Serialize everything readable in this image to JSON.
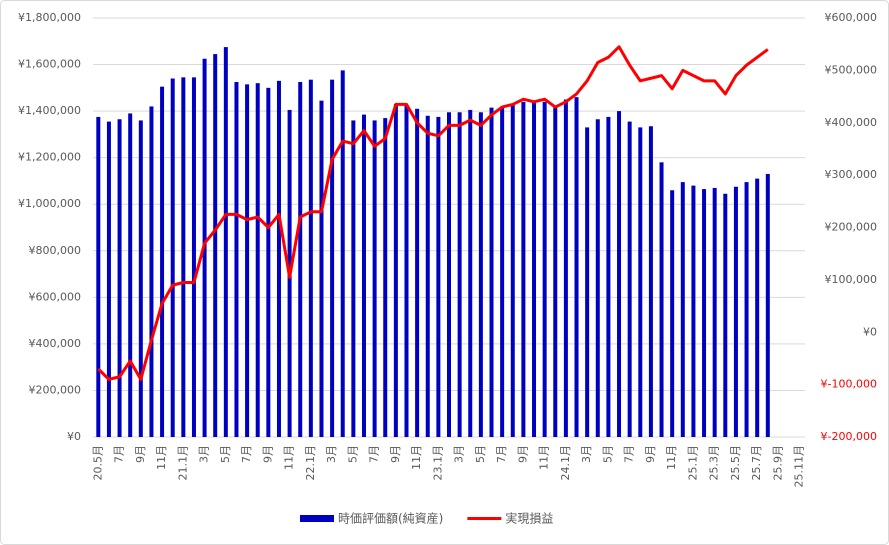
{
  "chart_data": {
    "type": "bar_line",
    "categories": [
      "20.5月",
      null,
      "7月",
      null,
      "9月",
      null,
      "11月",
      null,
      "21.1月",
      null,
      "3月",
      null,
      "5月",
      null,
      "7月",
      null,
      "9月",
      null,
      "11月",
      null,
      "22.1月",
      null,
      "3月",
      null,
      "5月",
      null,
      "7月",
      null,
      "9月",
      null,
      "11月",
      null,
      "23.1月",
      null,
      "3月",
      null,
      "5月",
      null,
      "7月",
      null,
      "9月",
      null,
      "11月",
      null,
      "24.1月",
      null,
      "3月",
      null,
      "5月",
      null,
      "7月",
      null,
      "9月",
      null,
      "11月",
      null,
      "25.1月",
      null,
      "25.3月",
      null,
      "25.5月",
      null,
      "25.7月",
      null,
      "25.9月",
      null,
      "25.11月"
    ],
    "series": [
      {
        "name": "時価評価額(純資産)",
        "type": "bar",
        "color": "#0000c0",
        "values": [
          1375000,
          1355000,
          1365000,
          1390000,
          1360000,
          1420000,
          1505000,
          1540000,
          1545000,
          1545000,
          1625000,
          1645000,
          1675000,
          1525000,
          1515000,
          1520000,
          1500000,
          1530000,
          1405000,
          1525000,
          1535000,
          1445000,
          1535000,
          1575000,
          1360000,
          1385000,
          1360000,
          1370000,
          1430000,
          1425000,
          1410000,
          1380000,
          1375000,
          1395000,
          1395000,
          1405000,
          1395000,
          1415000,
          1420000,
          1430000,
          1440000,
          1440000,
          1440000,
          1420000,
          1450000,
          1460000,
          1330000,
          1365000,
          1375000,
          1400000,
          1355000,
          1330000,
          1335000,
          1180000,
          1060000,
          1095000,
          1080000,
          1065000,
          1070000,
          1045000,
          1075000,
          1095000,
          1110000,
          1130000,
          null,
          null,
          null
        ]
      },
      {
        "name": "実現損益",
        "type": "line",
        "axis": "y2",
        "color": "#ff0000",
        "values": [
          -70000,
          -90000,
          -85000,
          -55000,
          -90000,
          -15000,
          55000,
          90000,
          95000,
          95000,
          170000,
          195000,
          225000,
          225000,
          215000,
          220000,
          200000,
          225000,
          105000,
          220000,
          230000,
          230000,
          330000,
          365000,
          360000,
          385000,
          355000,
          370000,
          435000,
          435000,
          400000,
          380000,
          375000,
          395000,
          395000,
          405000,
          395000,
          415000,
          430000,
          435000,
          445000,
          440000,
          445000,
          430000,
          440000,
          455000,
          480000,
          515000,
          525000,
          545000,
          510000,
          480000,
          485000,
          490000,
          465000,
          500000,
          490000,
          480000,
          480000,
          455000,
          490000,
          510000,
          525000,
          540000,
          null,
          null,
          null
        ]
      }
    ],
    "ylim": [
      0,
      1800000
    ],
    "yticks": [
      {
        "value": 0,
        "label": "¥0"
      },
      {
        "value": 200000,
        "label": "¥200,000"
      },
      {
        "value": 400000,
        "label": "¥400,000"
      },
      {
        "value": 600000,
        "label": "¥600,000"
      },
      {
        "value": 800000,
        "label": "¥800,000"
      },
      {
        "value": 1000000,
        "label": "¥1,000,000"
      },
      {
        "value": 1200000,
        "label": "¥1,200,000"
      },
      {
        "value": 1400000,
        "label": "¥1,400,000"
      },
      {
        "value": 1600000,
        "label": "¥1,600,000"
      },
      {
        "value": 1800000,
        "label": "¥1,800,000"
      }
    ],
    "y2lim": [
      -200000,
      600000
    ],
    "y2ticks": [
      {
        "value": -200000,
        "label": "¥-200,000"
      },
      {
        "value": -100000,
        "label": "¥-100,000"
      },
      {
        "value": 0,
        "label": "¥0"
      },
      {
        "value": 100000,
        "label": "¥100,000"
      },
      {
        "value": 200000,
        "label": "¥200,000"
      },
      {
        "value": 300000,
        "label": "¥300,000"
      },
      {
        "value": 400000,
        "label": "¥400,000"
      },
      {
        "value": 500000,
        "label": "¥500,000"
      },
      {
        "value": 600000,
        "label": "¥600,000"
      }
    ],
    "negative_tick_color": "#ff0000",
    "grid": true,
    "legend": "bottom"
  }
}
